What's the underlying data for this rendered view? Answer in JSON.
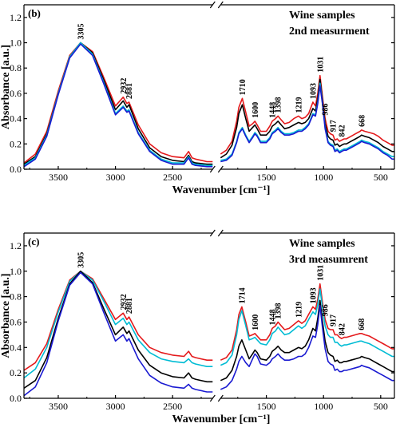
{
  "chart_data": [
    {
      "type": "line",
      "panel_label": "(b)",
      "title": "Wine samples",
      "subtitle": "2nd measurment",
      "xlabel": "Wavenumber [cm⁻¹]",
      "ylabel": "Absorbance [a.u.]",
      "xlim": [
        3800,
        380
      ],
      "axis_break": [
        2150,
        1900
      ],
      "ylim": [
        0,
        1.3
      ],
      "x_ticks": [
        "3500",
        "3000",
        "2500",
        "1500",
        "1000",
        "500"
      ],
      "y_ticks": [
        "0.0",
        "0.2",
        "0.4",
        "0.6",
        "0.8",
        "1.0",
        "1.2"
      ],
      "peak_labels": [
        "3305",
        "2932",
        "2881",
        "1710",
        "1600",
        "1448",
        "1398",
        "1219",
        "1093",
        "1031",
        "986",
        "917",
        "842",
        "668"
      ],
      "x": [
        3800,
        3700,
        3600,
        3500,
        3400,
        3305,
        3200,
        3100,
        3000,
        2932,
        2900,
        2881,
        2800,
        2700,
        2600,
        2500,
        2400,
        2360,
        2330,
        2300,
        2200,
        2150,
        1900,
        1850,
        1800,
        1760,
        1740,
        1710,
        1680,
        1650,
        1620,
        1600,
        1580,
        1550,
        1500,
        1470,
        1448,
        1420,
        1398,
        1370,
        1340,
        1300,
        1260,
        1219,
        1190,
        1160,
        1130,
        1093,
        1070,
        1050,
        1031,
        1010,
        986,
        960,
        940,
        917,
        900,
        880,
        860,
        842,
        820,
        800,
        760,
        720,
        680,
        668,
        640,
        600,
        560,
        520,
        480,
        440,
        400,
        380
      ],
      "series": [
        {
          "color": "#e41a1c",
          "values": [
            0.05,
            0.12,
            0.3,
            0.62,
            0.9,
            1.0,
            0.93,
            0.72,
            0.5,
            0.57,
            0.52,
            0.53,
            0.35,
            0.2,
            0.13,
            0.1,
            0.09,
            0.14,
            0.09,
            0.08,
            0.06,
            0.06,
            0.12,
            0.15,
            0.22,
            0.38,
            0.49,
            0.56,
            0.45,
            0.34,
            0.36,
            0.38,
            0.35,
            0.3,
            0.3,
            0.34,
            0.38,
            0.4,
            0.42,
            0.39,
            0.36,
            0.37,
            0.4,
            0.42,
            0.4,
            0.41,
            0.44,
            0.53,
            0.5,
            0.6,
            0.74,
            0.58,
            0.4,
            0.3,
            0.28,
            0.27,
            0.23,
            0.24,
            0.22,
            0.23,
            0.24,
            0.24,
            0.26,
            0.28,
            0.3,
            0.31,
            0.3,
            0.29,
            0.28,
            0.26,
            0.23,
            0.21,
            0.19,
            0.19
          ]
        },
        {
          "color": "#000000",
          "values": [
            0.04,
            0.1,
            0.28,
            0.6,
            0.89,
            1.0,
            0.92,
            0.7,
            0.47,
            0.54,
            0.49,
            0.51,
            0.32,
            0.17,
            0.1,
            0.07,
            0.06,
            0.11,
            0.06,
            0.05,
            0.04,
            0.04,
            0.09,
            0.12,
            0.19,
            0.33,
            0.44,
            0.51,
            0.4,
            0.3,
            0.33,
            0.35,
            0.32,
            0.27,
            0.27,
            0.3,
            0.34,
            0.36,
            0.38,
            0.35,
            0.32,
            0.33,
            0.35,
            0.37,
            0.36,
            0.37,
            0.4,
            0.48,
            0.46,
            0.56,
            0.71,
            0.55,
            0.36,
            0.26,
            0.24,
            0.23,
            0.19,
            0.2,
            0.18,
            0.19,
            0.2,
            0.2,
            0.22,
            0.24,
            0.26,
            0.27,
            0.26,
            0.25,
            0.23,
            0.21,
            0.18,
            0.16,
            0.14,
            0.14
          ]
        },
        {
          "color": "#00bcd4",
          "values": [
            0.03,
            0.09,
            0.27,
            0.6,
            0.89,
            1.0,
            0.91,
            0.68,
            0.44,
            0.5,
            0.46,
            0.47,
            0.29,
            0.15,
            0.08,
            0.05,
            0.05,
            0.1,
            0.05,
            0.04,
            0.03,
            0.03,
            0.07,
            0.08,
            0.12,
            0.22,
            0.29,
            0.33,
            0.27,
            0.22,
            0.26,
            0.29,
            0.27,
            0.22,
            0.22,
            0.25,
            0.29,
            0.31,
            0.33,
            0.3,
            0.28,
            0.28,
            0.29,
            0.31,
            0.31,
            0.33,
            0.36,
            0.44,
            0.43,
            0.53,
            0.68,
            0.53,
            0.33,
            0.22,
            0.2,
            0.19,
            0.15,
            0.16,
            0.14,
            0.15,
            0.16,
            0.16,
            0.18,
            0.2,
            0.22,
            0.23,
            0.22,
            0.21,
            0.19,
            0.17,
            0.14,
            0.12,
            0.1,
            0.1
          ]
        },
        {
          "color": "#1a1ad1",
          "values": [
            0.02,
            0.08,
            0.26,
            0.59,
            0.88,
            0.99,
            0.9,
            0.67,
            0.43,
            0.49,
            0.45,
            0.46,
            0.28,
            0.14,
            0.07,
            0.04,
            0.04,
            0.09,
            0.04,
            0.03,
            0.02,
            0.02,
            0.06,
            0.07,
            0.11,
            0.21,
            0.28,
            0.32,
            0.26,
            0.21,
            0.25,
            0.28,
            0.26,
            0.21,
            0.21,
            0.24,
            0.28,
            0.3,
            0.32,
            0.29,
            0.27,
            0.27,
            0.28,
            0.3,
            0.3,
            0.32,
            0.35,
            0.43,
            0.42,
            0.52,
            0.66,
            0.52,
            0.32,
            0.21,
            0.19,
            0.18,
            0.14,
            0.15,
            0.13,
            0.14,
            0.15,
            0.15,
            0.17,
            0.19,
            0.21,
            0.22,
            0.21,
            0.2,
            0.18,
            0.16,
            0.13,
            0.11,
            0.08,
            0.08
          ]
        }
      ]
    },
    {
      "type": "line",
      "panel_label": "(c)",
      "title": "Wine samples",
      "subtitle": "3rd measumrent",
      "xlabel": "Wavenumber [cm⁻¹]",
      "ylabel": "Absorbance [a.u.]",
      "xlim": [
        3800,
        380
      ],
      "axis_break": [
        2150,
        1900
      ],
      "ylim": [
        0,
        1.3
      ],
      "x_ticks": [
        "3500",
        "3000",
        "2500",
        "1500",
        "1000",
        "500"
      ],
      "y_ticks": [
        "0.0",
        "0.2",
        "0.4",
        "0.6",
        "0.8",
        "1.0",
        "1.2"
      ],
      "peak_labels": [
        "3305",
        "2932",
        "2881",
        "1714",
        "1600",
        "1448",
        "1398",
        "1219",
        "1093",
        "1031",
        "986",
        "917",
        "842",
        "668"
      ],
      "x": [
        3800,
        3700,
        3600,
        3500,
        3400,
        3305,
        3200,
        3100,
        3000,
        2932,
        2900,
        2881,
        2800,
        2700,
        2600,
        2500,
        2400,
        2360,
        2330,
        2300,
        2200,
        2150,
        1900,
        1850,
        1800,
        1760,
        1740,
        1714,
        1680,
        1650,
        1620,
        1600,
        1580,
        1550,
        1500,
        1470,
        1448,
        1420,
        1398,
        1370,
        1340,
        1300,
        1260,
        1219,
        1190,
        1160,
        1130,
        1093,
        1070,
        1050,
        1031,
        1010,
        986,
        960,
        940,
        917,
        900,
        880,
        860,
        842,
        820,
        800,
        760,
        720,
        680,
        668,
        640,
        600,
        560,
        520,
        480,
        440,
        400,
        380
      ],
      "series": [
        {
          "color": "#e41a1c",
          "values": [
            0.22,
            0.28,
            0.43,
            0.7,
            0.93,
            1.0,
            0.94,
            0.78,
            0.62,
            0.67,
            0.62,
            0.64,
            0.5,
            0.4,
            0.36,
            0.34,
            0.33,
            0.37,
            0.33,
            0.32,
            0.3,
            0.3,
            0.3,
            0.32,
            0.38,
            0.54,
            0.66,
            0.72,
            0.6,
            0.49,
            0.5,
            0.51,
            0.49,
            0.46,
            0.46,
            0.5,
            0.55,
            0.57,
            0.6,
            0.57,
            0.54,
            0.55,
            0.58,
            0.61,
            0.59,
            0.61,
            0.66,
            0.72,
            0.7,
            0.78,
            0.9,
            0.76,
            0.62,
            0.55,
            0.54,
            0.54,
            0.5,
            0.5,
            0.48,
            0.47,
            0.48,
            0.48,
            0.49,
            0.5,
            0.51,
            0.51,
            0.5,
            0.49,
            0.47,
            0.45,
            0.43,
            0.41,
            0.39,
            0.39
          ]
        },
        {
          "color": "#00bcd4",
          "values": [
            0.16,
            0.23,
            0.4,
            0.68,
            0.92,
            1.0,
            0.93,
            0.76,
            0.58,
            0.63,
            0.58,
            0.6,
            0.46,
            0.36,
            0.31,
            0.29,
            0.28,
            0.31,
            0.28,
            0.27,
            0.25,
            0.25,
            0.26,
            0.28,
            0.34,
            0.5,
            0.62,
            0.69,
            0.57,
            0.46,
            0.47,
            0.48,
            0.46,
            0.43,
            0.42,
            0.46,
            0.51,
            0.53,
            0.56,
            0.53,
            0.5,
            0.51,
            0.54,
            0.57,
            0.55,
            0.57,
            0.62,
            0.68,
            0.66,
            0.74,
            0.86,
            0.72,
            0.57,
            0.5,
            0.48,
            0.48,
            0.44,
            0.44,
            0.42,
            0.41,
            0.42,
            0.42,
            0.43,
            0.44,
            0.45,
            0.45,
            0.44,
            0.43,
            0.41,
            0.39,
            0.37,
            0.35,
            0.33,
            0.33
          ]
        },
        {
          "color": "#000000",
          "values": [
            0.08,
            0.14,
            0.32,
            0.63,
            0.9,
            1.0,
            0.91,
            0.7,
            0.5,
            0.56,
            0.51,
            0.53,
            0.38,
            0.26,
            0.2,
            0.17,
            0.16,
            0.2,
            0.16,
            0.15,
            0.13,
            0.13,
            0.14,
            0.16,
            0.22,
            0.33,
            0.41,
            0.46,
            0.38,
            0.31,
            0.35,
            0.38,
            0.36,
            0.31,
            0.3,
            0.33,
            0.37,
            0.39,
            0.41,
            0.38,
            0.36,
            0.36,
            0.38,
            0.4,
            0.39,
            0.41,
            0.46,
            0.55,
            0.53,
            0.63,
            0.77,
            0.61,
            0.45,
            0.36,
            0.34,
            0.33,
            0.29,
            0.3,
            0.28,
            0.28,
            0.29,
            0.29,
            0.3,
            0.31,
            0.32,
            0.33,
            0.32,
            0.31,
            0.29,
            0.27,
            0.25,
            0.23,
            0.21,
            0.21
          ]
        },
        {
          "color": "#1a1ad1",
          "values": [
            0.02,
            0.09,
            0.28,
            0.61,
            0.89,
            0.99,
            0.9,
            0.67,
            0.45,
            0.5,
            0.45,
            0.47,
            0.31,
            0.18,
            0.12,
            0.09,
            0.08,
            0.11,
            0.08,
            0.07,
            0.05,
            0.05,
            0.07,
            0.09,
            0.14,
            0.23,
            0.29,
            0.33,
            0.28,
            0.25,
            0.31,
            0.35,
            0.33,
            0.27,
            0.26,
            0.28,
            0.31,
            0.33,
            0.35,
            0.32,
            0.3,
            0.3,
            0.31,
            0.33,
            0.33,
            0.35,
            0.4,
            0.49,
            0.48,
            0.58,
            0.73,
            0.56,
            0.39,
            0.29,
            0.27,
            0.26,
            0.22,
            0.23,
            0.21,
            0.21,
            0.22,
            0.22,
            0.23,
            0.24,
            0.25,
            0.26,
            0.25,
            0.24,
            0.22,
            0.2,
            0.18,
            0.16,
            0.14,
            0.14
          ]
        }
      ]
    }
  ]
}
